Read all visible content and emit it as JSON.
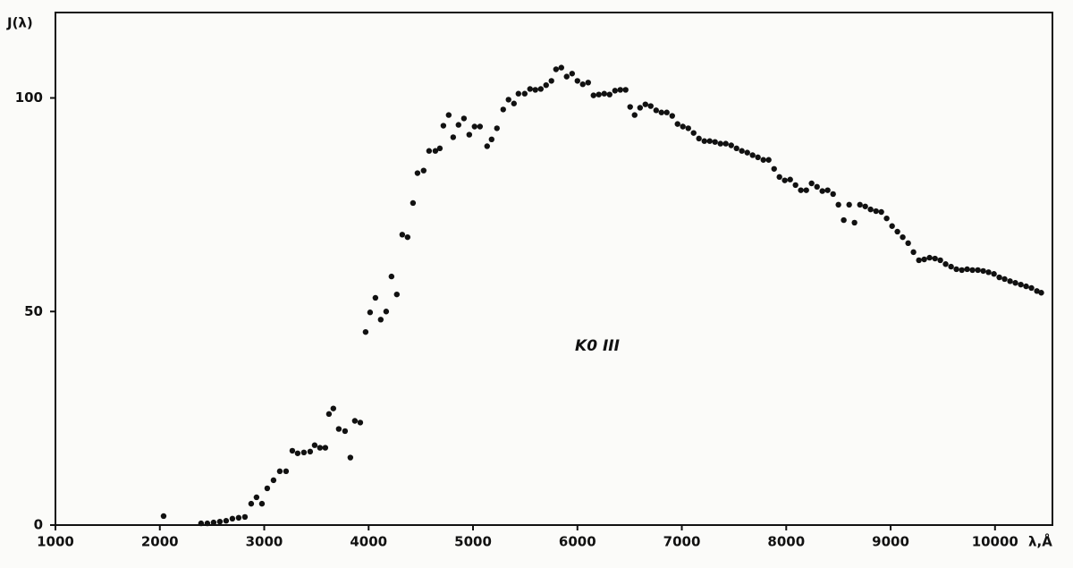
{
  "chart_data": {
    "type": "scatter",
    "y_label": "J(λ)",
    "x_label": "λ,Å",
    "annotation": "K0 III",
    "xlim": [
      1000,
      10550
    ],
    "ylim": [
      0,
      120
    ],
    "xticks": [
      1000,
      2000,
      3000,
      4000,
      5000,
      6000,
      7000,
      8000,
      9000,
      10000
    ],
    "yticks": [
      0,
      50,
      100
    ],
    "color": "#111111",
    "x": [
      2036,
      2395,
      2455,
      2515,
      2575,
      2635,
      2695,
      2755,
      2815,
      2875,
      2926,
      2978,
      3029,
      3089,
      3149,
      3209,
      3269,
      3320,
      3380,
      3440,
      3483,
      3534,
      3585,
      3620,
      3662,
      3714,
      3774,
      3825,
      3868,
      3920,
      3971,
      4014,
      4065,
      4116,
      4168,
      4219,
      4270,
      4322,
      4373,
      4425,
      4468,
      4527,
      4579,
      4639,
      4682,
      4716,
      4767,
      4810,
      4861,
      4913,
      4964,
      5015,
      5067,
      5135,
      5178,
      5229,
      5289,
      5340,
      5392,
      5435,
      5495,
      5546,
      5597,
      5649,
      5700,
      5751,
      5795,
      5846,
      5897,
      5949,
      6000,
      6051,
      6103,
      6154,
      6205,
      6257,
      6308,
      6360,
      6411,
      6462,
      6505,
      6548,
      6600,
      6651,
      6702,
      6754,
      6805,
      6856,
      6908,
      6959,
      7010,
      7062,
      7113,
      7164,
      7216,
      7267,
      7318,
      7370,
      7421,
      7473,
      7524,
      7575,
      7627,
      7678,
      7729,
      7781,
      7832,
      7884,
      7935,
      7986,
      8038,
      8089,
      8140,
      8192,
      8243,
      8295,
      8346,
      8397,
      8449,
      8500,
      8551,
      8603,
      8654,
      8706,
      8757,
      8808,
      8860,
      8911,
      8962,
      9014,
      9065,
      9116,
      9168,
      9219,
      9271,
      9322,
      9373,
      9425,
      9476,
      9527,
      9579,
      9630,
      9682,
      9733,
      9784,
      9836,
      9887,
      9938,
      9990,
      10041,
      10092,
      10144,
      10195,
      10247,
      10298,
      10349,
      10401,
      10443
    ],
    "values": [
      2.1,
      0.4,
      0.4,
      0.6,
      0.8,
      1,
      1.5,
      1.7,
      1.9,
      5,
      6.5,
      5,
      8.6,
      10.5,
      12.6,
      12.6,
      17.4,
      16.8,
      17,
      17.2,
      18.7,
      18.1,
      18.1,
      26,
      27.3,
      22.5,
      22,
      15.8,
      24.4,
      24,
      45.2,
      49.8,
      53.2,
      48.1,
      50,
      58.2,
      54,
      68,
      67.4,
      75.4,
      82.4,
      83,
      87.6,
      87.6,
      88.2,
      93.5,
      96,
      90.8,
      93.7,
      95.2,
      91.4,
      93.3,
      93.3,
      88.7,
      90.3,
      92.9,
      97.3,
      99.6,
      98.7,
      101,
      101,
      102.1,
      101.9,
      102.1,
      103,
      104,
      106.7,
      107.1,
      105,
      105.7,
      104,
      103.2,
      103.6,
      100.6,
      100.8,
      101,
      100.8,
      101.7,
      101.9,
      101.9,
      97.9,
      96,
      97.7,
      98.5,
      98.1,
      97.1,
      96.6,
      96.6,
      95.8,
      93.9,
      93.3,
      92.9,
      91.8,
      90.5,
      89.9,
      89.9,
      89.7,
      89.3,
      89.3,
      88.9,
      88.2,
      87.6,
      87.2,
      86.6,
      86.1,
      85.5,
      85.5,
      83.4,
      81.5,
      80.7,
      80.9,
      79.6,
      78.4,
      78.4,
      80,
      79.2,
      78.2,
      78.4,
      77.5,
      75,
      71.4,
      75,
      70.8,
      75,
      74.6,
      73.9,
      73.5,
      73.3,
      71.8,
      70,
      68.7,
      67.4,
      66,
      63.9,
      62,
      62.2,
      62.6,
      62.4,
      62,
      61.1,
      60.5,
      59.9,
      59.7,
      59.9,
      59.7,
      59.7,
      59.5,
      59.2,
      58.8,
      58,
      57.6,
      57.1,
      56.7,
      56.3,
      55.9,
      55.5,
      54.8,
      54.4
    ]
  }
}
